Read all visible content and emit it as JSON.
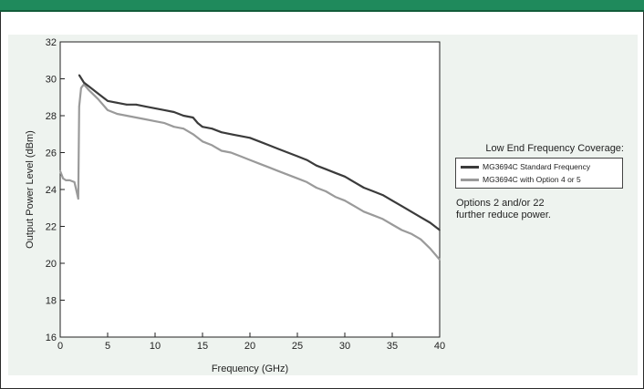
{
  "colors": {
    "header": "#1f8a5c",
    "standard_series": "#3b3b3b",
    "option_series": "#9a9a9a"
  },
  "legend": {
    "title": "Low End Frequency Coverage:",
    "items": [
      {
        "label": "MG3694C Standard Frequency",
        "color": "#3b3b3b"
      },
      {
        "label": "MG3694C with Option 4 or 5",
        "color": "#9a9a9a"
      }
    ]
  },
  "note": {
    "line1": "Options 2 and/or 22",
    "line2": "further reduce power."
  },
  "chart_data": {
    "type": "line",
    "xlabel": "Frequency (GHz)",
    "ylabel": "Output Power Level (dBm)",
    "xlim": [
      0,
      40
    ],
    "ylim": [
      16,
      32
    ],
    "xticks": [
      0,
      5,
      10,
      15,
      20,
      25,
      30,
      35,
      40
    ],
    "yticks": [
      16,
      18,
      20,
      22,
      24,
      26,
      28,
      30,
      32
    ],
    "grid": false,
    "legend_position": "right, outside plot",
    "series": [
      {
        "name": "MG3694C Standard Frequency",
        "color": "#3b3b3b",
        "x": [
          2.0,
          2.5,
          3,
          4,
          5,
          6,
          7,
          8,
          9,
          10,
          11,
          12,
          13,
          14,
          14.5,
          15,
          16,
          17,
          18,
          19,
          20,
          21,
          22,
          23,
          24,
          25,
          26,
          27,
          28,
          29,
          30,
          31,
          32,
          33,
          34,
          35,
          36,
          37,
          38,
          39,
          40
        ],
        "y": [
          30.2,
          29.8,
          29.6,
          29.2,
          28.8,
          28.7,
          28.6,
          28.6,
          28.5,
          28.4,
          28.3,
          28.2,
          28.0,
          27.9,
          27.6,
          27.4,
          27.3,
          27.1,
          27.0,
          26.9,
          26.8,
          26.6,
          26.4,
          26.2,
          26.0,
          25.8,
          25.6,
          25.3,
          25.1,
          24.9,
          24.7,
          24.4,
          24.1,
          23.9,
          23.7,
          23.4,
          23.1,
          22.8,
          22.5,
          22.2,
          21.8
        ]
      },
      {
        "name": "MG3694C with Option 4 or 5",
        "color": "#9a9a9a",
        "x": [
          0,
          0.3,
          0.6,
          1.0,
          1.5,
          1.9,
          2.0,
          2.2,
          2.5,
          3,
          4,
          5,
          6,
          7,
          8,
          9,
          10,
          11,
          12,
          13,
          14,
          15,
          16,
          17,
          18,
          19,
          20,
          21,
          22,
          23,
          24,
          25,
          26,
          27,
          28,
          29,
          30,
          31,
          32,
          33,
          34,
          35,
          36,
          37,
          38,
          39,
          40
        ],
        "y": [
          25.0,
          24.6,
          24.5,
          24.5,
          24.4,
          23.5,
          28.5,
          29.5,
          29.7,
          29.4,
          28.9,
          28.3,
          28.1,
          28.0,
          27.9,
          27.8,
          27.7,
          27.6,
          27.4,
          27.3,
          27.0,
          26.6,
          26.4,
          26.1,
          26.0,
          25.8,
          25.6,
          25.4,
          25.2,
          25.0,
          24.8,
          24.6,
          24.4,
          24.1,
          23.9,
          23.6,
          23.4,
          23.1,
          22.8,
          22.6,
          22.4,
          22.1,
          21.8,
          21.6,
          21.3,
          20.8,
          20.2
        ]
      }
    ]
  }
}
